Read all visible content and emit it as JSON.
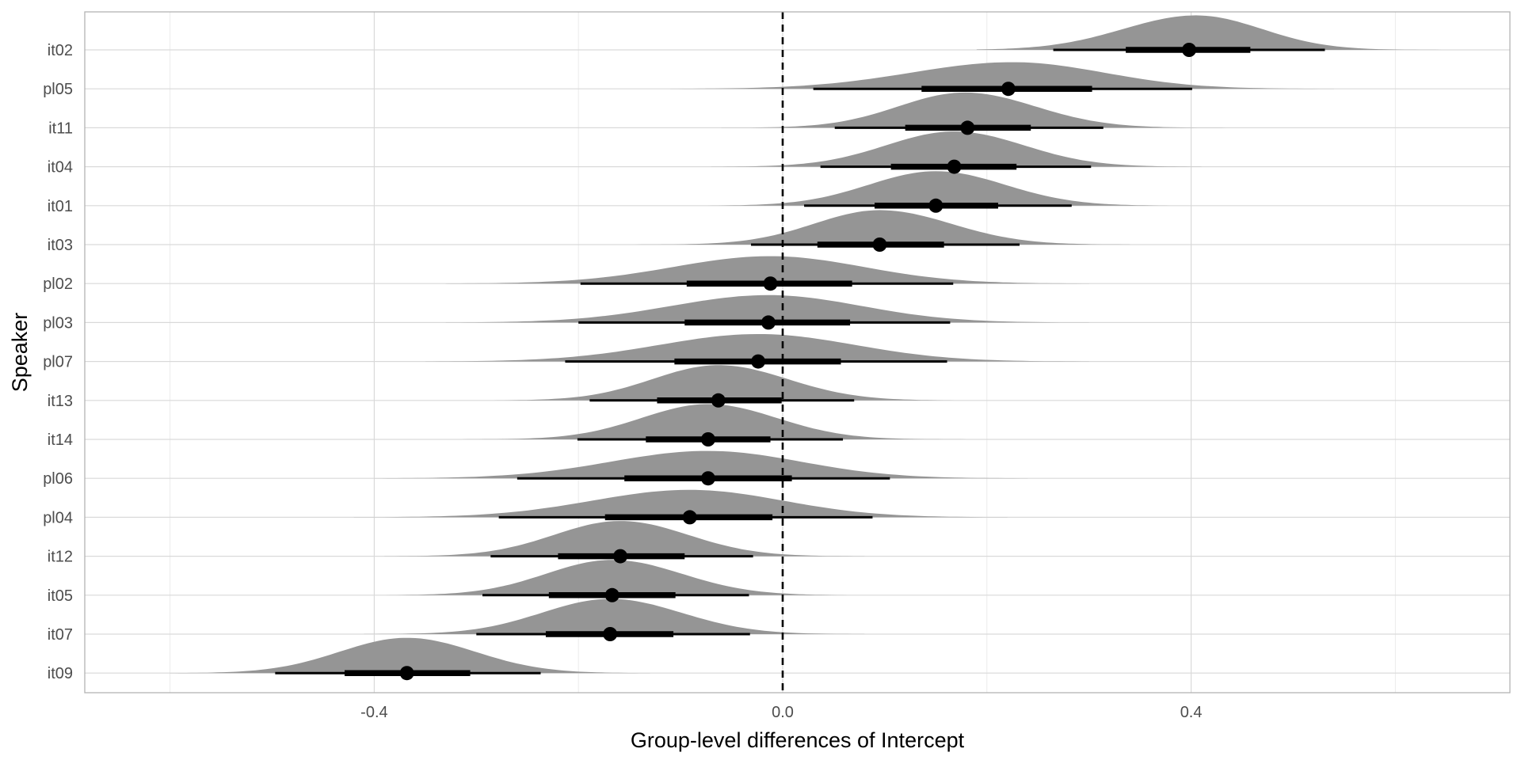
{
  "chart_data": {
    "type": "halfeye",
    "title": "",
    "xlabel": "Group-level differences of Intercept",
    "ylabel": "Speaker",
    "xlim": [
      -0.685,
      0.71
    ],
    "x_ticks": [
      -0.4,
      0.0,
      0.4
    ],
    "x_tick_labels": [
      "-0.4",
      "0.0",
      "0.4"
    ],
    "minor_x_ticks": [
      -0.6,
      -0.2,
      0.2,
      0.6
    ],
    "reference_line": 0,
    "grid": true,
    "categories": [
      "it02",
      "pl05",
      "it11",
      "it04",
      "it01",
      "it03",
      "pl02",
      "pl03",
      "pl07",
      "it13",
      "it14",
      "pl06",
      "pl04",
      "it12",
      "it05",
      "it07",
      "it09"
    ],
    "series": [
      {
        "label": "it02",
        "median": 0.398,
        "q66": [
          0.336,
          0.458
        ],
        "q95": [
          0.265,
          0.531
        ],
        "density_range": [
          0.19,
          0.65
        ],
        "peak": 0.405,
        "height": 0.88
      },
      {
        "label": "pl05",
        "median": 0.221,
        "q66": [
          0.136,
          0.303
        ],
        "q95": [
          0.03,
          0.401
        ],
        "density_range": [
          -0.11,
          0.54
        ],
        "peak": 0.225,
        "height": 0.68
      },
      {
        "label": "it11",
        "median": 0.181,
        "q66": [
          0.12,
          0.243
        ],
        "q95": [
          0.051,
          0.314
        ],
        "density_range": [
          -0.06,
          0.44
        ],
        "peak": 0.178,
        "height": 0.9
      },
      {
        "label": "it04",
        "median": 0.168,
        "q66": [
          0.106,
          0.229
        ],
        "q95": [
          0.037,
          0.302
        ],
        "density_range": [
          -0.07,
          0.41
        ],
        "peak": 0.168,
        "height": 0.9
      },
      {
        "label": "it01",
        "median": 0.15,
        "q66": [
          0.09,
          0.211
        ],
        "q95": [
          0.021,
          0.283
        ],
        "density_range": [
          -0.09,
          0.39
        ],
        "peak": 0.15,
        "height": 0.88
      },
      {
        "label": "it03",
        "median": 0.095,
        "q66": [
          0.034,
          0.158
        ],
        "q95": [
          -0.031,
          0.232
        ],
        "density_range": [
          -0.15,
          0.34
        ],
        "peak": 0.095,
        "height": 0.88
      },
      {
        "label": "pl02",
        "median": -0.012,
        "q66": [
          -0.094,
          0.068
        ],
        "q95": [
          -0.198,
          0.167
        ],
        "density_range": [
          -0.33,
          0.3
        ],
        "peak": -0.012,
        "height": 0.7
      },
      {
        "label": "pl03",
        "median": -0.014,
        "q66": [
          -0.096,
          0.066
        ],
        "q95": [
          -0.2,
          0.164
        ],
        "density_range": [
          -0.33,
          0.3
        ],
        "peak": -0.014,
        "height": 0.7
      },
      {
        "label": "pl07",
        "median": -0.024,
        "q66": [
          -0.106,
          0.057
        ],
        "q95": [
          -0.213,
          0.161
        ],
        "density_range": [
          -0.35,
          0.3
        ],
        "peak": -0.024,
        "height": 0.7
      },
      {
        "label": "it13",
        "median": -0.063,
        "q66": [
          -0.123,
          -0.001
        ],
        "q95": [
          -0.189,
          0.07
        ],
        "density_range": [
          -0.3,
          0.19
        ],
        "peak": -0.063,
        "height": 0.9
      },
      {
        "label": "it14",
        "median": -0.073,
        "q66": [
          -0.134,
          -0.012
        ],
        "q95": [
          -0.201,
          0.059
        ],
        "density_range": [
          -0.32,
          0.18
        ],
        "peak": -0.073,
        "height": 0.9
      },
      {
        "label": "pl06",
        "median": -0.073,
        "q66": [
          -0.155,
          0.009
        ],
        "q95": [
          -0.26,
          0.105
        ],
        "density_range": [
          -0.4,
          0.24
        ],
        "peak": -0.073,
        "height": 0.7
      },
      {
        "label": "pl04",
        "median": -0.091,
        "q66": [
          -0.174,
          -0.01
        ],
        "q95": [
          -0.278,
          0.088
        ],
        "density_range": [
          -0.42,
          0.22
        ],
        "peak": -0.091,
        "height": 0.7
      },
      {
        "label": "it12",
        "median": -0.159,
        "q66": [
          -0.22,
          -0.096
        ],
        "q95": [
          -0.286,
          -0.029
        ],
        "density_range": [
          -0.39,
          0.08
        ],
        "peak": -0.159,
        "height": 0.9
      },
      {
        "label": "it05",
        "median": -0.167,
        "q66": [
          -0.229,
          -0.105
        ],
        "q95": [
          -0.294,
          -0.033
        ],
        "density_range": [
          -0.4,
          0.08
        ],
        "peak": -0.167,
        "height": 0.9
      },
      {
        "label": "it07",
        "median": -0.169,
        "q66": [
          -0.232,
          -0.107
        ],
        "q95": [
          -0.3,
          -0.032
        ],
        "density_range": [
          -0.41,
          0.08
        ],
        "peak": -0.169,
        "height": 0.9
      },
      {
        "label": "it09",
        "median": -0.368,
        "q66": [
          -0.429,
          -0.306
        ],
        "q95": [
          -0.497,
          -0.237
        ],
        "density_range": [
          -0.6,
          -0.13
        ],
        "peak": -0.368,
        "height": 0.9
      }
    ],
    "colors": {
      "density": "#959595",
      "interval": "#000000",
      "grid_major": "#d9d9d9",
      "grid_minor": "#ebebeb",
      "reference": "#000000",
      "panel_border": "#b3b3b3"
    }
  }
}
